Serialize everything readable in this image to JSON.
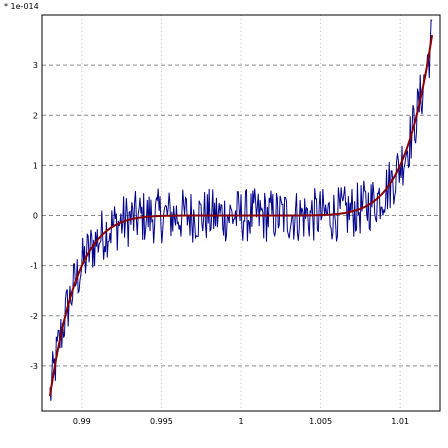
{
  "chart_data": {
    "type": "line",
    "title": "",
    "xlabel": "",
    "ylabel": "",
    "y_multiplier_label": "* 1e-014",
    "xlim": [
      0.9875,
      1.0125
    ],
    "ylim": [
      -3.9,
      4.0
    ],
    "x_ticks": [
      0.99,
      0.995,
      1,
      1.005,
      1.01
    ],
    "x_tick_labels": [
      "0.99",
      "0.995",
      "1",
      "1.005",
      "1.01"
    ],
    "y_ticks": [
      -3,
      -2,
      -1,
      0,
      1,
      2,
      3
    ],
    "y_tick_labels": [
      "-3",
      "-2",
      "-1",
      "0",
      "1",
      "2",
      "3"
    ],
    "grid": true,
    "legend": "none",
    "series": [
      {
        "kind": "smooth",
        "description_value": "(x - 1)^7 scaled",
        "x_range": [
          0.988,
          1.012
        ],
        "y_endpoints": [
          -3.6,
          3.6
        ],
        "color": "#8b0000"
      },
      {
        "kind": "noisy",
        "x_range": [
          0.988,
          1.012
        ],
        "noise_amplitude": 0.55,
        "color": "#00008b"
      }
    ]
  }
}
